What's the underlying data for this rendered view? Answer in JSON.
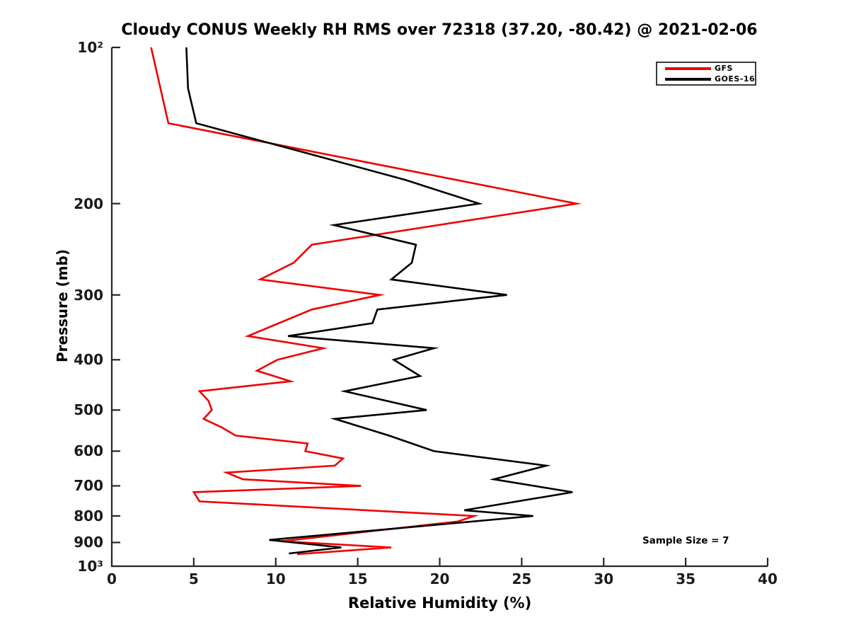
{
  "chart_data": {
    "type": "line",
    "title": "Cloudy CONUS Weekly RH RMS over 72318 (37.20, -80.42) @ 2021-02-06",
    "xlabel": "Relative Humidity (%)",
    "ylabel": "Pressure (mb)",
    "xlim": [
      0,
      40
    ],
    "xticks": [
      0,
      5,
      10,
      15,
      20,
      25,
      30,
      35,
      40
    ],
    "yscale": "log",
    "ylim_mb": [
      100,
      1000
    ],
    "yticks": [
      {
        "p": 100,
        "label": "10²"
      },
      {
        "p": 200,
        "label": "200"
      },
      {
        "p": 300,
        "label": "300"
      },
      {
        "p": 400,
        "label": "400"
      },
      {
        "p": 500,
        "label": "500"
      },
      {
        "p": 600,
        "label": "600"
      },
      {
        "p": 700,
        "label": "700"
      },
      {
        "p": 800,
        "label": "800"
      },
      {
        "p": 900,
        "label": "900"
      },
      {
        "p": 1000,
        "label": "10³"
      }
    ],
    "grid": false,
    "legend_position": "upper right",
    "annotation": "Sample Size = 7",
    "axis_color": "#262626",
    "series": [
      {
        "name": "GFS",
        "color": "#f00000",
        "points_rh_mb": [
          [
            2.4,
            100
          ],
          [
            3.45,
            140
          ],
          [
            28.35,
            200
          ],
          [
            12.2,
            240
          ],
          [
            11.1,
            260
          ],
          [
            9.05,
            280
          ],
          [
            16.35,
            300
          ],
          [
            12.2,
            320
          ],
          [
            8.3,
            360
          ],
          [
            12.9,
            380
          ],
          [
            10.1,
            400
          ],
          [
            8.85,
            420
          ],
          [
            10.9,
            440
          ],
          [
            5.35,
            460
          ],
          [
            5.9,
            480
          ],
          [
            6.1,
            500
          ],
          [
            5.6,
            520
          ],
          [
            6.7,
            540
          ],
          [
            7.55,
            560
          ],
          [
            11.95,
            580
          ],
          [
            11.8,
            600
          ],
          [
            14.1,
            620
          ],
          [
            13.6,
            640
          ],
          [
            7.0,
            660
          ],
          [
            8.0,
            680
          ],
          [
            15.2,
            700
          ],
          [
            5.0,
            720
          ],
          [
            5.35,
            750
          ],
          [
            22.1,
            800
          ],
          [
            21.1,
            820
          ],
          [
            10.35,
            895
          ],
          [
            17.05,
            920
          ],
          [
            11.3,
            948
          ]
        ]
      },
      {
        "name": "GOES-16",
        "color": "#000000",
        "points_rh_mb": [
          [
            4.55,
            100
          ],
          [
            4.65,
            120
          ],
          [
            5.15,
            140
          ],
          [
            17.9,
            180
          ],
          [
            22.4,
            200
          ],
          [
            13.55,
            220
          ],
          [
            18.55,
            240
          ],
          [
            18.3,
            260
          ],
          [
            17.05,
            280
          ],
          [
            24.1,
            300
          ],
          [
            16.2,
            320
          ],
          [
            15.9,
            340
          ],
          [
            10.75,
            360
          ],
          [
            19.65,
            380
          ],
          [
            17.2,
            400
          ],
          [
            18.8,
            430
          ],
          [
            14.2,
            460
          ],
          [
            19.2,
            500
          ],
          [
            13.6,
            520
          ],
          [
            16.9,
            560
          ],
          [
            19.65,
            600
          ],
          [
            26.5,
            640
          ],
          [
            23.3,
            680
          ],
          [
            28.1,
            720
          ],
          [
            21.5,
            780
          ],
          [
            25.7,
            800
          ],
          [
            9.6,
            890
          ],
          [
            14.0,
            920
          ],
          [
            10.8,
            945
          ]
        ]
      }
    ]
  }
}
